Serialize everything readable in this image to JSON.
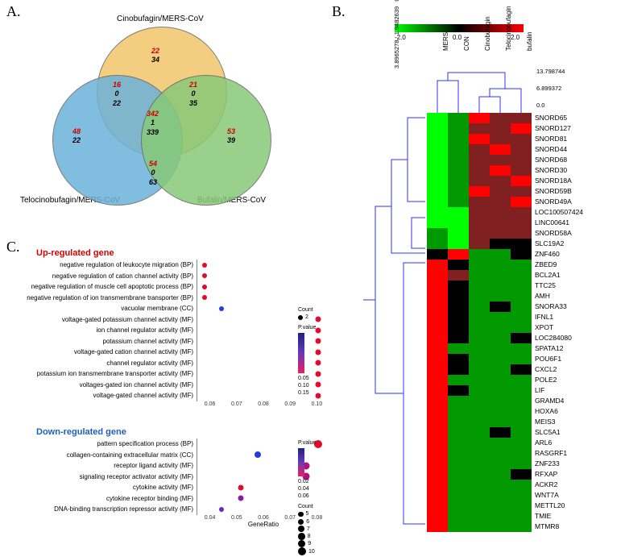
{
  "panel_labels": {
    "A": "A.",
    "B": "B.",
    "C": "C."
  },
  "venn": {
    "title_top": "Cinobufagin/MERS-CoV",
    "title_left": "Telocinobufagin/MERS-CoV",
    "title_right": "Bufalin/MERS-CoV",
    "colors": {
      "top": "#f2c56b",
      "left": "#6cb2d9",
      "right": "#88c978",
      "stroke": "#666666"
    },
    "regions": {
      "top_only": {
        "red": "22",
        "blk": "34"
      },
      "left_only": {
        "red": "48",
        "blk": "22"
      },
      "right_only": {
        "red": "53",
        "blk": "39"
      },
      "top_left": {
        "red": "16",
        "blk": "0",
        "extra": "22"
      },
      "top_right": {
        "red": "21",
        "blk": "0",
        "extra": "35"
      },
      "left_right": {
        "red": "54",
        "blk": "0",
        "extra": "63"
      },
      "center": {
        "red": "342",
        "blk": "1",
        "extra": "339"
      }
    }
  },
  "dotplots": {
    "axis_label": "GeneRatio",
    "pvalue_label": "P.value",
    "count_label": "Count",
    "up": {
      "title": "Up-regulated gene",
      "title_color": "#d40000",
      "xticks": [
        "0.06",
        "0.07",
        "0.08",
        "0.09",
        "0.10"
      ],
      "xrange": [
        0.05,
        0.105
      ],
      "pvalue_range": [
        0.05,
        0.15
      ],
      "pvalue_ticks": [
        "0.05",
        "0.10",
        "0.15"
      ],
      "count_legend": [
        2
      ],
      "rows": [
        {
          "label": "negative regulation of leukocyte migration (BP)",
          "x": 0.053,
          "size": 6,
          "color": "#e30b2c"
        },
        {
          "label": "negative regulation of cation channel activity (BP)",
          "x": 0.053,
          "size": 6,
          "color": "#e30b2c"
        },
        {
          "label": "negative regulation of muscle cell apoptotic process (BP)",
          "x": 0.053,
          "size": 6,
          "color": "#e30b2c"
        },
        {
          "label": "negative regulation of ion transmembrane transporter (BP)",
          "x": 0.053,
          "size": 6,
          "color": "#e30b2c"
        },
        {
          "label": "vacuolar membrane (CC)",
          "x": 0.06,
          "size": 6,
          "color": "#2a3bdc"
        },
        {
          "label": "voltage-gated potassium channel activity (MF)",
          "x": 0.1,
          "size": 7,
          "color": "#e30b2c"
        },
        {
          "label": "ion channel regulator activity (MF)",
          "x": 0.1,
          "size": 7,
          "color": "#e30b2c"
        },
        {
          "label": "potassium channel activity (MF)",
          "x": 0.1,
          "size": 7,
          "color": "#e30b2c"
        },
        {
          "label": "voltage-gated cation channel activity (MF)",
          "x": 0.1,
          "size": 7,
          "color": "#e30b2c"
        },
        {
          "label": "channel regulator activity (MF)",
          "x": 0.1,
          "size": 7,
          "color": "#e30b2c"
        },
        {
          "label": "potassium ion transmembrane transporter activity (MF)",
          "x": 0.1,
          "size": 7,
          "color": "#e30b2c"
        },
        {
          "label": "voltages-gated ion channel activity (MF)",
          "x": 0.1,
          "size": 7,
          "color": "#e30b2c"
        },
        {
          "label": "voltage-gated channel activity (MF)",
          "x": 0.1,
          "size": 7,
          "color": "#e30b2c"
        }
      ]
    },
    "down": {
      "title": "Down-regulated gene",
      "title_color": "#1f5fbf",
      "xticks": [
        "0.04",
        "0.05",
        "0.06",
        "0.07",
        "0.08"
      ],
      "xrange": [
        0.035,
        0.09
      ],
      "pvalue_range": [
        0.02,
        0.06
      ],
      "pvalue_ticks": [
        "0.02",
        "0.04",
        "0.06"
      ],
      "count_legend": [
        5,
        6,
        7,
        8,
        9,
        10
      ],
      "rows": [
        {
          "label": "pattern specification process (BP)",
          "x": 0.085,
          "size": 10,
          "color": "#e30b2c"
        },
        {
          "label": "collagen-containing extracellular matrix (CC)",
          "x": 0.06,
          "size": 8,
          "color": "#2a3bdc"
        },
        {
          "label": "receptor ligand activity (MF)",
          "x": 0.08,
          "size": 9,
          "color": "#b01080"
        },
        {
          "label": "signaling receptor activator activity (MF)",
          "x": 0.08,
          "size": 9,
          "color": "#b01080"
        },
        {
          "label": "cytokine activity (MF)",
          "x": 0.053,
          "size": 7,
          "color": "#e30b2c"
        },
        {
          "label": "cytokine receptor binding (MF)",
          "x": 0.053,
          "size": 7,
          "color": "#8a1aa8"
        },
        {
          "label": "DNA-binding transcription repressor activity (MF)",
          "x": 0.045,
          "size": 6,
          "color": "#6a2abf"
        }
      ]
    }
  },
  "heatmap": {
    "scale_ticks": [
      "-2.0",
      "0.0",
      "2.0"
    ],
    "col_labels": [
      "MERS",
      "CON",
      "Cinobufagin",
      "Telocinobufagin",
      "bufalin"
    ],
    "col_dendro_left_ticks": [
      "3.8965278",
      "1.9482639",
      "0.0"
    ],
    "col_dendro_right_ticks": [
      "13.798744",
      "6.899372",
      "0.0"
    ],
    "row_labels": [
      "SNORD65",
      "SNORD127",
      "SNORD81",
      "SNORD44",
      "SNORD68",
      "SNORD30",
      "SNORD18A",
      "SNORD59B",
      "SNORD49A",
      "LOC100507424",
      "LINC00641",
      "SNORD58A",
      "SLC19A2",
      "ZNF460",
      "ZBED9",
      "BCL2A1",
      "TTC25",
      "AMH",
      "SNORA33",
      "IFNL1",
      "XPOT",
      "LOC284080",
      "SPATA12",
      "POU6F1",
      "CXCL2",
      "POLE2",
      "LIF",
      "GRAMD4",
      "HOXA6",
      "MEIS3",
      "SLC5A1",
      "ARL6",
      "RASGRF1",
      "ZNF233",
      "RFXAP",
      "ACKR2",
      "WNT7A",
      "METTL20",
      "TMIE",
      "MTMR8"
    ],
    "colors": {
      "neg2": "#00ff00",
      "neg1": "#009900",
      "zero": "#000000",
      "pos1": "#802020",
      "pos2": "#ff0000"
    },
    "matrix": [
      [
        -2,
        -1,
        2,
        1,
        1
      ],
      [
        -2,
        -1,
        1,
        1,
        2
      ],
      [
        -2,
        -1,
        2,
        1,
        1
      ],
      [
        -2,
        -1,
        1,
        2,
        1
      ],
      [
        -2,
        -1,
        1,
        1,
        1
      ],
      [
        -2,
        -1,
        1,
        2,
        1
      ],
      [
        -2,
        -1,
        1,
        1,
        2
      ],
      [
        -2,
        -1,
        2,
        1,
        1
      ],
      [
        -2,
        -1,
        1,
        1,
        2
      ],
      [
        -2,
        -2,
        1,
        1,
        1
      ],
      [
        -2,
        -2,
        1,
        1,
        1
      ],
      [
        -1,
        -2,
        1,
        1,
        1
      ],
      [
        -1,
        -2,
        1,
        0,
        0
      ],
      [
        0,
        2,
        -1,
        -1,
        0
      ],
      [
        2,
        0,
        -1,
        -1,
        -1
      ],
      [
        2,
        1,
        -1,
        -1,
        -1
      ],
      [
        2,
        0,
        -1,
        -1,
        -1
      ],
      [
        2,
        0,
        -1,
        -1,
        -1
      ],
      [
        2,
        0,
        -1,
        0,
        -1
      ],
      [
        2,
        0,
        -1,
        -1,
        -1
      ],
      [
        2,
        0,
        -1,
        -1,
        -1
      ],
      [
        2,
        0,
        -1,
        -1,
        0
      ],
      [
        2,
        -1,
        -1,
        -1,
        -1
      ],
      [
        2,
        0,
        -1,
        -1,
        -1
      ],
      [
        2,
        0,
        -1,
        -1,
        0
      ],
      [
        2,
        -1,
        -1,
        -1,
        -1
      ],
      [
        2,
        0,
        -1,
        -1,
        -1
      ],
      [
        2,
        -1,
        -1,
        -1,
        -1
      ],
      [
        2,
        -1,
        -1,
        -1,
        -1
      ],
      [
        2,
        -1,
        -1,
        -1,
        -1
      ],
      [
        2,
        -1,
        -1,
        0,
        -1
      ],
      [
        2,
        -1,
        -1,
        -1,
        -1
      ],
      [
        2,
        -1,
        -1,
        -1,
        -1
      ],
      [
        2,
        -1,
        -1,
        -1,
        -1
      ],
      [
        2,
        -1,
        -1,
        -1,
        0
      ],
      [
        2,
        -1,
        -1,
        -1,
        -1
      ],
      [
        2,
        -1,
        -1,
        -1,
        -1
      ],
      [
        2,
        -1,
        -1,
        -1,
        -1
      ],
      [
        2,
        -1,
        -1,
        -1,
        -1
      ],
      [
        2,
        -1,
        -1,
        -1,
        -1
      ]
    ]
  }
}
